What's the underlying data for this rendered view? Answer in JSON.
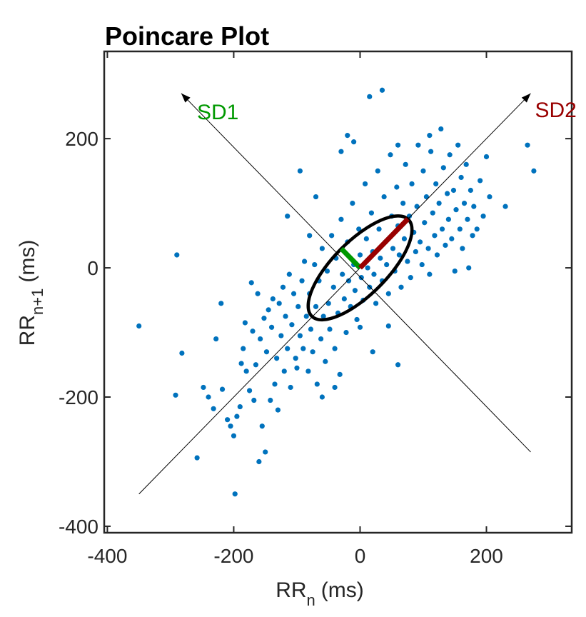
{
  "chart_data": {
    "type": "scatter",
    "title": "Poincare Plot",
    "xlabel": {
      "main": "RR",
      "sub": "n",
      "unit": "(ms)"
    },
    "ylabel": {
      "main": "RR",
      "sub": "n+1",
      "unit": "(ms)"
    },
    "xlim": [
      -405,
      335
    ],
    "ylim": [
      -410,
      335
    ],
    "xticks": [
      -400,
      -200,
      0,
      200
    ],
    "yticks": [
      -400,
      -200,
      0,
      200
    ],
    "grid": false,
    "colors": {
      "points": "#0072BD",
      "ellipse": "#000000",
      "sd1": "#009900",
      "sd2": "#990000",
      "axes": "#262626"
    },
    "sd_axes": {
      "sd1": {
        "label": "SD1",
        "from": [
          270,
          -285
        ],
        "to": [
          -283,
          270
        ]
      },
      "sd2": {
        "label": "SD2",
        "from": [
          -350,
          -350
        ],
        "to": [
          270,
          270
        ]
      }
    },
    "ellipse": {
      "center": [
        0,
        0
      ],
      "sd1": 42,
      "sd2": 107,
      "angle_deg": 45
    },
    "points": [
      [
        -350,
        -90
      ],
      [
        -290,
        20
      ],
      [
        -292,
        -197
      ],
      [
        -282,
        -132
      ],
      [
        -258,
        -294
      ],
      [
        -248,
        -185
      ],
      [
        -240,
        -200
      ],
      [
        -232,
        -218
      ],
      [
        -228,
        -110
      ],
      [
        -220,
        -55
      ],
      [
        -218,
        -188
      ],
      [
        -210,
        -235
      ],
      [
        -205,
        -245
      ],
      [
        -200,
        -260
      ],
      [
        -198,
        -350
      ],
      [
        -195,
        -230
      ],
      [
        -190,
        -215
      ],
      [
        -188,
        -148
      ],
      [
        -185,
        -125
      ],
      [
        -182,
        -85
      ],
      [
        -180,
        -160
      ],
      [
        -175,
        -190
      ],
      [
        -172,
        -23
      ],
      [
        -170,
        -98
      ],
      [
        -168,
        -205
      ],
      [
        -165,
        -150
      ],
      [
        -162,
        -40
      ],
      [
        -160,
        -300
      ],
      [
        -158,
        -110
      ],
      [
        -155,
        -245
      ],
      [
        -152,
        -78
      ],
      [
        -150,
        -285
      ],
      [
        -148,
        -130
      ],
      [
        -145,
        -65
      ],
      [
        -142,
        -205
      ],
      [
        -140,
        -92
      ],
      [
        -138,
        -48
      ],
      [
        -135,
        -180
      ],
      [
        -132,
        -140
      ],
      [
        -130,
        -220
      ],
      [
        -128,
        -55
      ],
      [
        -125,
        -105
      ],
      [
        -122,
        -30
      ],
      [
        -120,
        -160
      ],
      [
        -118,
        -75
      ],
      [
        -115,
        -125
      ],
      [
        -112,
        -10
      ],
      [
        -110,
        -185
      ],
      [
        -108,
        -88
      ],
      [
        -105,
        -40
      ],
      [
        -102,
        -140
      ],
      [
        -100,
        -155
      ],
      [
        -98,
        -60
      ],
      [
        -95,
        -105
      ],
      [
        -92,
        -20
      ],
      [
        -90,
        -125
      ],
      [
        -88,
        10
      ],
      [
        -85,
        -75
      ],
      [
        -82,
        -160
      ],
      [
        -80,
        -40
      ],
      [
        -78,
        -95
      ],
      [
        -75,
        -130
      ],
      [
        -72,
        5
      ],
      [
        -70,
        -60
      ],
      [
        -68,
        -180
      ],
      [
        -65,
        -20
      ],
      [
        -62,
        -110
      ],
      [
        -60,
        30
      ],
      [
        -58,
        -75
      ],
      [
        -55,
        -145
      ],
      [
        -52,
        -5
      ],
      [
        -50,
        -55
      ],
      [
        -48,
        -95
      ],
      [
        -45,
        50
      ],
      [
        -42,
        -30
      ],
      [
        -40,
        -125
      ],
      [
        -38,
        15
      ],
      [
        -35,
        -70
      ],
      [
        -32,
        -165
      ],
      [
        -30,
        75
      ],
      [
        -28,
        -10
      ],
      [
        -25,
        -48
      ],
      [
        -22,
        -100
      ],
      [
        -20,
        40
      ],
      [
        -18,
        -20
      ],
      [
        -15,
        -60
      ],
      [
        -12,
        100
      ],
      [
        -10,
        5
      ],
      [
        -8,
        -35
      ],
      [
        -5,
        -80
      ],
      [
        -2,
        60
      ],
      [
        0,
        20
      ],
      [
        2,
        -15
      ],
      [
        5,
        -50
      ],
      [
        8,
        130
      ],
      [
        10,
        45
      ],
      [
        12,
        0
      ],
      [
        15,
        -30
      ],
      [
        18,
        85
      ],
      [
        20,
        25
      ],
      [
        22,
        -10
      ],
      [
        25,
        -55
      ],
      [
        28,
        150
      ],
      [
        30,
        60
      ],
      [
        32,
        15
      ],
      [
        35,
        -20
      ],
      [
        38,
        110
      ],
      [
        40,
        40
      ],
      [
        42,
        5
      ],
      [
        45,
        -40
      ],
      [
        48,
        175
      ],
      [
        50,
        80
      ],
      [
        52,
        30
      ],
      [
        55,
        -5
      ],
      [
        58,
        125
      ],
      [
        60,
        65
      ],
      [
        62,
        20
      ],
      [
        65,
        -30
      ],
      [
        68,
        100
      ],
      [
        70,
        45
      ],
      [
        72,
        160
      ],
      [
        75,
        10
      ],
      [
        78,
        80
      ],
      [
        80,
        -15
      ],
      [
        82,
        130
      ],
      [
        85,
        55
      ],
      [
        88,
        25
      ],
      [
        90,
        95
      ],
      [
        92,
        190
      ],
      [
        95,
        40
      ],
      [
        98,
        5
      ],
      [
        100,
        150
      ],
      [
        102,
        70
      ],
      [
        105,
        110
      ],
      [
        108,
        30
      ],
      [
        110,
        -10
      ],
      [
        112,
        180
      ],
      [
        115,
        85
      ],
      [
        118,
        50
      ],
      [
        120,
        130
      ],
      [
        122,
        20
      ],
      [
        125,
        100
      ],
      [
        128,
        215
      ],
      [
        130,
        60
      ],
      [
        132,
        155
      ],
      [
        135,
        35
      ],
      [
        138,
        115
      ],
      [
        140,
        75
      ],
      [
        142,
        175
      ],
      [
        145,
        45
      ],
      [
        148,
        120
      ],
      [
        150,
        -5
      ],
      [
        152,
        90
      ],
      [
        155,
        190
      ],
      [
        158,
        60
      ],
      [
        160,
        140
      ],
      [
        162,
        30
      ],
      [
        165,
        100
      ],
      [
        168,
        160
      ],
      [
        170,
        75
      ],
      [
        172,
        0
      ],
      [
        175,
        120
      ],
      [
        178,
        50
      ],
      [
        180,
        95
      ],
      [
        185,
        60
      ],
      [
        190,
        135
      ],
      [
        195,
        80
      ],
      [
        200,
        172
      ],
      [
        205,
        110
      ],
      [
        230,
        95
      ],
      [
        265,
        190
      ],
      [
        275,
        150
      ],
      [
        -20,
        205
      ],
      [
        15,
        265
      ],
      [
        35,
        275
      ],
      [
        -10,
        195
      ],
      [
        -95,
        150
      ],
      [
        -70,
        110
      ],
      [
        -30,
        180
      ],
      [
        60,
        190
      ],
      [
        110,
        205
      ],
      [
        -115,
        80
      ],
      [
        -80,
        50
      ],
      [
        0,
        -92
      ],
      [
        -40,
        -185
      ],
      [
        20,
        -130
      ],
      [
        -60,
        -200
      ],
      [
        60,
        -150
      ],
      [
        45,
        -90
      ]
    ]
  }
}
